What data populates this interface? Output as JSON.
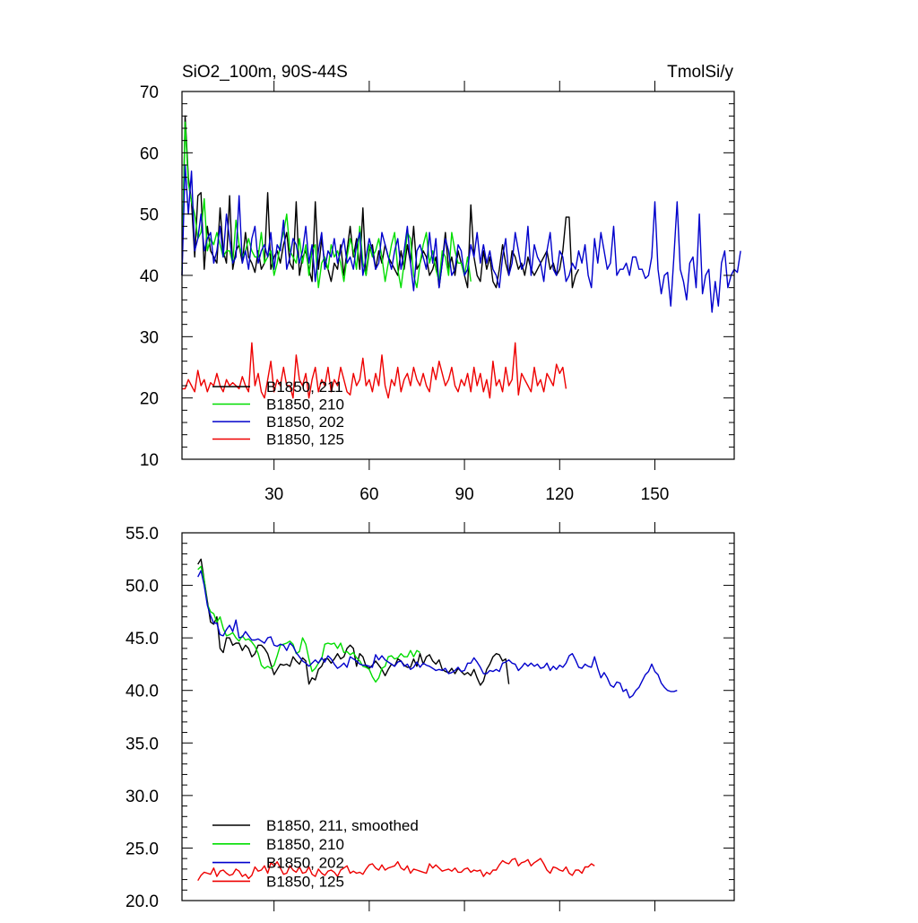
{
  "chart_data": [
    {
      "type": "line",
      "title_left": "SiO2_100m, 90S-44S",
      "title_right": "TmolSi/y",
      "xlim": [
        1,
        175
      ],
      "ylim": [
        10,
        70
      ],
      "x_ticks": [
        30,
        60,
        90,
        120,
        150
      ],
      "x_tick_labels": [
        "30",
        "60",
        "90",
        "120",
        "150"
      ],
      "y_ticks": [
        10,
        20,
        30,
        40,
        50,
        60,
        70
      ],
      "y_tick_labels": [
        "10",
        "20",
        "30",
        "40",
        "50",
        "60",
        "70"
      ],
      "grid": false,
      "legend_position": "bottom-left",
      "series": [
        {
          "name": "B1850, 211",
          "color": "#000000",
          "x_start": 1,
          "values": [
            40,
            66,
            56,
            52,
            43,
            53,
            53.5,
            41,
            48,
            44,
            43,
            42,
            51,
            44,
            42,
            53,
            41,
            44,
            45,
            42,
            47,
            43,
            42,
            40.5,
            44,
            41,
            42,
            53.5,
            41,
            43,
            44,
            42,
            45,
            47,
            42,
            41,
            52,
            40,
            43,
            44,
            41,
            39,
            52,
            41,
            46,
            42,
            41,
            39,
            42,
            41,
            45,
            40,
            44,
            48,
            43,
            46,
            41,
            51,
            40,
            44,
            45,
            41,
            44,
            42,
            45,
            43,
            42,
            41,
            40,
            44,
            41,
            45,
            42,
            48,
            41,
            42,
            44,
            43,
            40,
            41,
            43,
            38,
            42,
            47,
            41,
            43,
            40,
            44,
            42,
            40,
            38,
            51.5,
            43,
            40,
            39,
            44,
            41,
            43,
            39,
            38,
            41,
            45,
            42,
            40,
            44,
            43,
            41,
            42,
            40,
            43,
            41,
            40,
            41,
            42,
            43,
            44,
            41,
            42,
            40,
            41,
            44,
            49.5,
            49.5,
            38,
            40,
            41
          ]
        },
        {
          "name": "B1850, 210",
          "color": "#00dd00",
          "x_start": 1,
          "values": [
            41,
            65,
            55,
            52,
            50,
            46,
            47,
            52.5,
            44,
            46,
            45,
            47,
            45,
            43,
            44,
            44,
            42,
            49,
            45,
            43,
            44,
            46,
            44,
            43,
            43,
            47,
            42,
            43,
            44,
            40,
            42,
            45,
            47,
            50,
            44,
            43,
            42,
            46,
            42,
            45,
            40,
            44,
            45,
            38,
            42,
            43,
            41,
            45,
            43,
            44,
            42,
            39,
            43,
            46,
            44,
            41,
            48,
            42,
            40,
            45,
            43,
            44,
            46,
            43,
            39,
            42,
            45,
            47,
            41,
            38,
            42,
            47,
            46,
            40,
            38,
            42,
            45,
            47,
            42,
            44,
            41,
            39,
            44,
            43,
            40,
            47,
            44,
            42,
            42,
            40,
            43,
            39
          ]
        },
        {
          "name": "B1850, 202",
          "color": "#0000cc",
          "x_start": 1,
          "values": [
            40,
            58,
            50,
            57,
            44,
            46,
            50,
            44,
            46,
            47,
            42,
            44,
            48,
            43,
            50,
            46,
            42,
            43,
            53,
            42,
            44,
            41,
            46,
            48,
            42,
            44,
            45,
            43,
            47,
            41,
            45,
            44,
            49,
            41,
            43,
            46,
            45,
            42,
            44,
            48,
            42,
            45,
            39,
            44,
            47,
            41,
            44,
            43,
            46,
            42,
            44,
            46,
            42,
            43,
            41,
            45,
            47,
            40,
            43,
            46,
            44,
            41,
            42,
            47,
            45,
            43,
            41,
            44,
            46,
            41,
            44,
            48,
            42,
            37.5,
            44,
            45,
            43,
            41,
            47,
            42,
            46,
            38,
            42,
            46,
            44,
            40,
            41,
            45,
            44,
            40,
            41,
            45,
            43,
            47,
            42,
            45,
            42,
            44,
            41,
            40,
            38,
            43,
            46,
            40,
            42,
            47,
            44,
            41,
            42,
            48,
            40,
            45,
            43,
            42,
            39,
            44,
            47,
            41,
            40,
            44,
            43,
            39,
            40,
            42,
            41,
            44,
            42,
            45,
            40,
            38,
            46,
            42,
            47,
            44,
            41,
            42,
            48,
            40,
            41,
            41,
            42,
            40,
            43,
            43,
            41,
            41,
            39.5,
            40,
            43,
            52,
            41,
            37,
            40,
            40.5,
            35,
            43,
            52,
            41,
            39,
            36,
            42,
            43,
            38,
            50,
            37,
            40,
            41,
            34,
            39,
            35,
            42,
            44,
            38,
            40,
            41,
            40.5,
            44
          ]
        },
        {
          "name": "B1850, 125",
          "color": "#ee0000",
          "x_start": 1,
          "values": [
            21.5,
            21.5,
            23,
            22,
            21,
            24.5,
            22,
            23,
            21,
            22.5,
            22,
            24,
            22,
            21,
            23,
            22,
            22.5,
            22,
            21.5,
            23.5,
            22,
            21,
            29,
            22,
            24,
            21,
            20,
            23,
            26,
            21,
            23,
            22,
            25,
            22,
            22,
            20,
            27,
            23,
            22,
            24,
            20,
            23,
            25,
            21,
            23,
            22,
            25,
            21,
            23,
            22,
            25,
            23,
            21,
            20.5,
            24,
            22,
            23,
            26.5,
            22,
            23,
            21,
            24,
            22,
            27,
            22,
            20,
            23,
            22,
            25,
            21,
            23,
            24,
            22,
            25,
            23,
            22,
            24,
            22,
            21,
            25,
            23,
            26,
            24,
            22,
            23,
            25,
            22,
            21,
            23,
            22,
            24,
            21,
            25,
            22,
            24,
            21,
            23,
            20,
            26,
            22,
            23,
            21,
            25,
            22,
            23,
            29,
            20.5,
            24,
            23,
            22,
            21,
            25,
            22,
            23,
            21,
            24,
            23,
            22,
            25.5,
            24,
            25,
            21.5
          ]
        }
      ]
    },
    {
      "type": "line",
      "xlim": [
        1,
        175
      ],
      "ylim": [
        20,
        55
      ],
      "x_ticks": [
        30,
        60,
        90,
        120,
        150
      ],
      "y_ticks": [
        20,
        25,
        30,
        35,
        40,
        45,
        50,
        55
      ],
      "y_tick_labels": [
        "20.0",
        "25.0",
        "30.0",
        "35.0",
        "40.0",
        "45.0",
        "50.0",
        "55.0"
      ],
      "grid": false,
      "legend_position": "bottom-left",
      "series": [
        {
          "name": "B1850, 211, smoothed",
          "color": "#000000",
          "x_start": 6,
          "values": [
            52,
            52.5,
            50.5,
            48.5,
            46.5,
            46.3,
            47,
            44,
            43.6,
            45,
            45,
            44.3,
            44.5,
            44.5,
            43.8,
            44.3,
            44,
            43.2,
            43.5,
            44.3,
            44.3,
            44,
            43.5,
            42.5,
            41.5,
            42,
            42.5,
            42.4,
            42.5,
            42.3,
            43.2,
            42.8,
            42.5,
            43.1,
            42.8,
            40.6,
            41.2,
            41,
            42,
            42.3,
            43,
            43,
            42.6,
            43,
            43.5,
            43,
            43.2,
            44,
            44.3,
            44,
            42.3,
            43.5,
            43.2,
            42.3,
            42.1,
            42.4,
            42.8,
            42.4,
            42,
            41.4,
            42,
            42.5,
            42.3,
            43,
            42.8,
            42.4,
            42.2,
            42.2,
            43,
            42.3,
            43.5,
            42.5,
            43.2,
            43.4,
            42.8,
            42.5,
            42.9,
            42,
            41.8,
            41.7,
            42.1,
            41.6,
            42.1,
            41.8,
            41.5,
            41.7,
            41.4,
            42,
            41.2,
            40.5,
            40.9,
            42,
            42.5,
            43.2,
            43.5,
            43.4,
            42.8,
            43,
            40.6
          ]
        },
        {
          "name": "B1850, 210",
          "color": "#00dd00",
          "x_start": 6,
          "values": [
            51.5,
            51.8,
            50.5,
            48.2,
            47.5,
            47.3,
            46.5,
            47,
            45.9,
            45.2,
            45.3,
            45.5,
            45,
            44.7,
            45.2,
            44.8,
            44.9,
            44.6,
            44.2,
            43.5,
            42.4,
            42.1,
            42.3,
            42.1,
            42.4,
            43.3,
            44.3,
            44.4,
            44.5,
            44.7,
            44.4,
            43.5,
            43.7,
            45,
            44.4,
            43,
            41.8,
            42.1,
            42.6,
            43,
            44.4,
            44.5,
            44.4,
            44.5,
            44,
            44.5,
            43.6,
            43.7,
            43.4,
            43.6,
            43.1,
            42.8,
            42.3,
            42.2,
            42,
            41.3,
            40.8,
            41.2,
            42.1,
            42.3,
            43.2,
            43.3,
            43,
            43.1,
            43.5,
            43.2,
            43.2,
            43.8,
            43.2,
            43.8,
            43.6
          ]
        },
        {
          "name": "B1850, 202",
          "color": "#0000cc",
          "x_start": 6,
          "values": [
            50.8,
            51.4,
            50,
            48.1,
            47.1,
            46.4,
            46.4,
            45.3,
            45.2,
            45.8,
            46.2,
            45.6,
            46.7,
            45,
            45.1,
            45.6,
            45.2,
            44.8,
            44.8,
            44.9,
            44.7,
            44.5,
            45,
            45.1,
            44.3,
            44.2,
            44.4,
            44.3,
            43.8,
            44.5,
            44.2,
            43.6,
            43.2,
            42.8,
            42.6,
            42.3,
            42.6,
            42.9,
            42.6,
            43.1,
            42.7,
            43.3,
            43,
            42.5,
            42.1,
            42.3,
            42.6,
            42.2,
            43.2,
            43,
            42.8,
            42.5,
            42.4,
            42.4,
            42.3,
            42.2,
            43.4,
            42.9,
            43.3,
            42.9,
            42.7,
            42.5,
            42.3,
            42.7,
            42.8,
            42.3,
            42.5,
            42,
            42.2,
            42.7,
            42.2,
            42.6,
            42.4,
            42.3,
            42.1,
            41.9,
            42,
            41.9,
            42.1,
            41.6,
            41.7,
            41.9,
            42.2,
            41.8,
            41.9,
            42.6,
            42.6,
            43.1,
            42.7,
            42.2,
            41.6,
            41.6,
            41.9,
            41.8,
            42,
            41.8,
            42.6,
            42.7,
            42.9,
            42.6,
            42.5,
            41.9,
            42.2,
            42.6,
            42.3,
            42.6,
            42.3,
            42.5,
            42.1,
            42.2,
            42.6,
            41.9,
            42.3,
            42,
            42.4,
            42.2,
            42.6,
            43.3,
            43.5,
            42.9,
            42.2,
            42.1,
            42.5,
            42.3,
            42.2,
            43.2,
            42.1,
            41.2,
            41.7,
            41.2,
            40.5,
            40.3,
            40.8,
            40.7,
            39.9,
            40.1,
            39.3,
            39.5,
            40,
            40.3,
            40.9,
            41.5,
            41.8,
            42.5,
            41.8,
            41.5,
            40.7,
            40.3,
            40,
            39.9,
            39.9,
            40
          ]
        },
        {
          "name": "B1850, 125",
          "color": "#ee0000",
          "x_start": 6,
          "values": [
            21.9,
            22.4,
            22.7,
            22.6,
            22.5,
            23.1,
            22.3,
            22.8,
            22.9,
            22.6,
            22.4,
            22.5,
            23,
            22.8,
            22.3,
            22.5,
            22.1,
            22.4,
            23.2,
            22.8,
            22.9,
            23.3,
            22.6,
            23.6,
            23.3,
            23.7,
            23.1,
            22.5,
            22.6,
            23.3,
            22.9,
            22.7,
            23.2,
            22.6,
            22.7,
            23.2,
            22.5,
            22.3,
            23,
            22.6,
            22.4,
            22.8,
            22.9,
            22.7,
            22.3,
            22.9,
            23.1,
            23.3,
            22.6,
            22.8,
            22.6,
            22.7,
            22.5,
            23,
            23.4,
            23.5,
            23.1,
            22.9,
            23.4,
            22.9,
            23.1,
            23.2,
            23.3,
            23.7,
            23.1,
            22.9,
            23.3,
            22.6,
            23,
            22.9,
            22.8,
            22.7,
            22.6,
            23.5,
            23.1,
            23.4,
            23.1,
            22.8,
            22.9,
            23,
            22.8,
            23.1,
            22.7,
            22.7,
            23,
            23.1,
            22.7,
            22.9,
            22.8,
            22.9,
            22.3,
            22.7,
            22.5,
            22.9,
            22.9,
            23.4,
            23.8,
            23.6,
            23.5,
            23.9,
            24,
            23.3,
            23.6,
            23.7,
            23.9,
            23.3,
            23.6,
            23.8,
            24,
            23.5,
            22.9,
            22.6,
            23.2,
            23.1,
            22.9,
            22.8,
            23.2,
            22.6,
            22.4,
            22.9,
            22.9,
            22.6,
            23.2,
            23.2,
            23.5,
            23.3
          ]
        }
      ]
    }
  ]
}
